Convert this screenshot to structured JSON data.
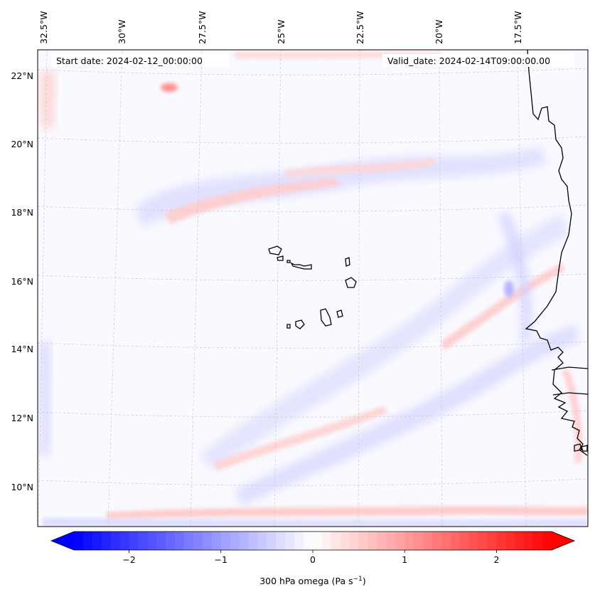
{
  "map": {
    "type": "filled-contour-map",
    "projection": "lambert",
    "start_date_label": "Start date: 2024-02-12_00:00:00",
    "valid_date_label": "Valid_date: 2024-02-14T09:00:00.00",
    "lon_labels": [
      "32.5°W",
      "30°W",
      "27.5°W",
      "25°W",
      "22.5°W",
      "20°W",
      "17.5°W"
    ],
    "lat_labels": [
      "22°N",
      "20°N",
      "18°N",
      "16°N",
      "14°N",
      "12°N",
      "10°N"
    ],
    "features": [
      "Cape Verde islands",
      "West African coastline (Mauritania, Senegal, Gambia, Guinea-Bissau)"
    ]
  },
  "colorbar": {
    "label": "300 hPa omega (Pa s",
    "label_sup": "−1",
    "label_close": ")",
    "ticks": [
      "−2",
      "−1",
      "0",
      "1",
      "2"
    ],
    "tick_values": [
      -2,
      -1,
      0,
      1,
      2
    ],
    "range": [
      -2.6,
      2.6
    ],
    "color_min": "#0000ff",
    "color_mid": "#ffffff",
    "color_max": "#ff0000",
    "extend": "both"
  }
}
